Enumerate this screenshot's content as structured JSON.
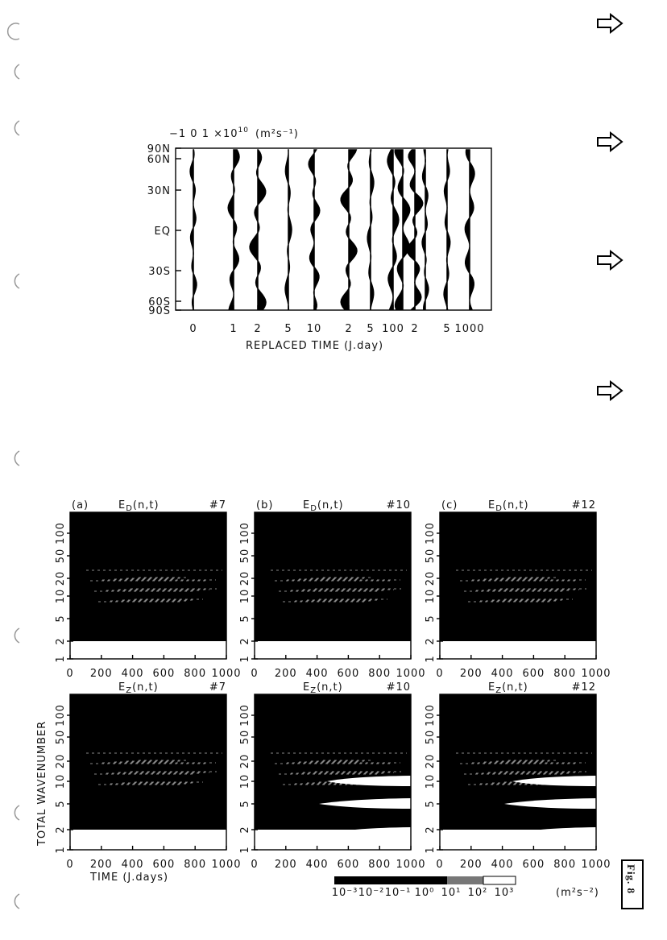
{
  "top_figure": {
    "scale_prefix": "−1  0  1 ×10",
    "scale_exponent": "10",
    "scale_unit": "(m²s⁻¹)",
    "y_labels": [
      "90N",
      "60N",
      "30N",
      "EQ",
      "30S",
      "60S",
      "90S"
    ],
    "x_labels": [
      "0",
      "1",
      "2",
      "5",
      "10",
      "2",
      "5",
      "100",
      "2",
      "5",
      "1000"
    ],
    "x_title": "REPLACED TIME (J.day)"
  },
  "panels": [
    {
      "label": "(a)",
      "symbol": "E",
      "subscript": "D",
      "args": "(n,t)",
      "run": "#7"
    },
    {
      "label": "(b)",
      "symbol": "E",
      "subscript": "D",
      "args": "(n,t)",
      "run": "#10"
    },
    {
      "label": "(c)",
      "symbol": "E",
      "subscript": "D",
      "args": "(n,t)",
      "run": "#12"
    },
    {
      "symbol": "E",
      "subscript": "Z",
      "args": "(n,t)",
      "run": "#7"
    },
    {
      "symbol": "E",
      "subscript": "Z",
      "args": "(n,t)",
      "run": "#10"
    },
    {
      "symbol": "E",
      "subscript": "Z",
      "args": "(n,t)",
      "run": "#12"
    }
  ],
  "y_ticks": [
    "1",
    "2",
    "5",
    "10",
    "20",
    "50",
    "100"
  ],
  "x_ticks": [
    "0",
    "200",
    "400",
    "600",
    "800",
    "1000"
  ],
  "y_title": "TOTAL WAVENUMBER",
  "x_title": "TIME (J.days)",
  "colorbar": {
    "labels": [
      "10⁻³",
      "10⁻²",
      "10⁻¹",
      "10⁰",
      "10¹",
      "10²",
      "10³"
    ],
    "unit": "(m²s⁻²)"
  },
  "fig_label": "Fig. 8"
}
